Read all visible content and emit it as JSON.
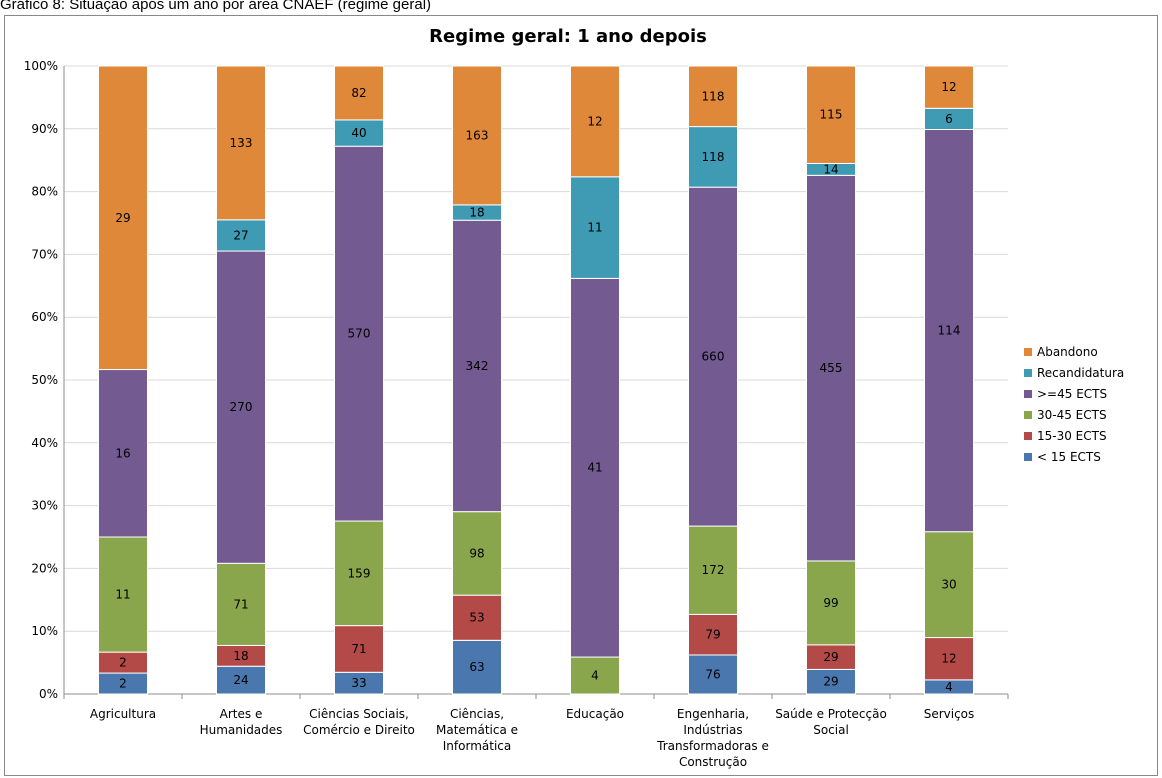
{
  "caption": "Gráfico 8: Situação após um ano por área CNAEF (regime geral)",
  "colors": {
    "abandono": "#E0883A",
    "recandidatura": "#3E9BB3",
    "ects45": "#735A91",
    "ects30_45": "#8AA64C",
    "ects15_30": "#B44A47",
    "ects15": "#4A77AE"
  },
  "chart_data": {
    "type": "bar",
    "stacked": true,
    "normalized": true,
    "title": "Regime geral: 1 ano depois",
    "xlabel": "",
    "ylabel": "",
    "ylim": [
      0,
      100
    ],
    "y_ticks": [
      "0%",
      "10%",
      "20%",
      "30%",
      "40%",
      "50%",
      "60%",
      "70%",
      "80%",
      "90%",
      "100%"
    ],
    "legend_position": "right",
    "categories": [
      [
        "Agricultura"
      ],
      [
        "Artes e",
        "Humanidades"
      ],
      [
        "Ciências Sociais,",
        "Comércio e Direito"
      ],
      [
        "Ciências,",
        "Matemática e",
        "Informática"
      ],
      [
        "Educação"
      ],
      [
        "Engenharia,",
        "Indústrias",
        "Transformadoras e",
        "Construção"
      ],
      [
        "Saúde e Protecção",
        "Social"
      ],
      [
        "Serviços"
      ]
    ],
    "series": [
      {
        "name": "< 15 ECTS",
        "color_key": "ects15",
        "values": [
          2,
          24,
          33,
          63,
          0,
          76,
          29,
          4
        ]
      },
      {
        "name": "15-30 ECTS",
        "color_key": "ects15_30",
        "values": [
          2,
          18,
          71,
          53,
          0,
          79,
          29,
          12
        ]
      },
      {
        "name": "30-45 ECTS",
        "color_key": "ects30_45",
        "values": [
          11,
          71,
          159,
          98,
          4,
          172,
          99,
          30
        ]
      },
      {
        "name": ">=45 ECTS",
        "color_key": "ects45",
        "values": [
          16,
          270,
          570,
          342,
          41,
          660,
          455,
          114
        ]
      },
      {
        "name": "Recandidatura",
        "color_key": "recandidatura",
        "values": [
          0,
          27,
          40,
          18,
          11,
          118,
          14,
          6
        ]
      },
      {
        "name": "Abandono",
        "color_key": "abandono",
        "values": [
          29,
          133,
          82,
          163,
          12,
          118,
          115,
          12
        ]
      }
    ]
  }
}
